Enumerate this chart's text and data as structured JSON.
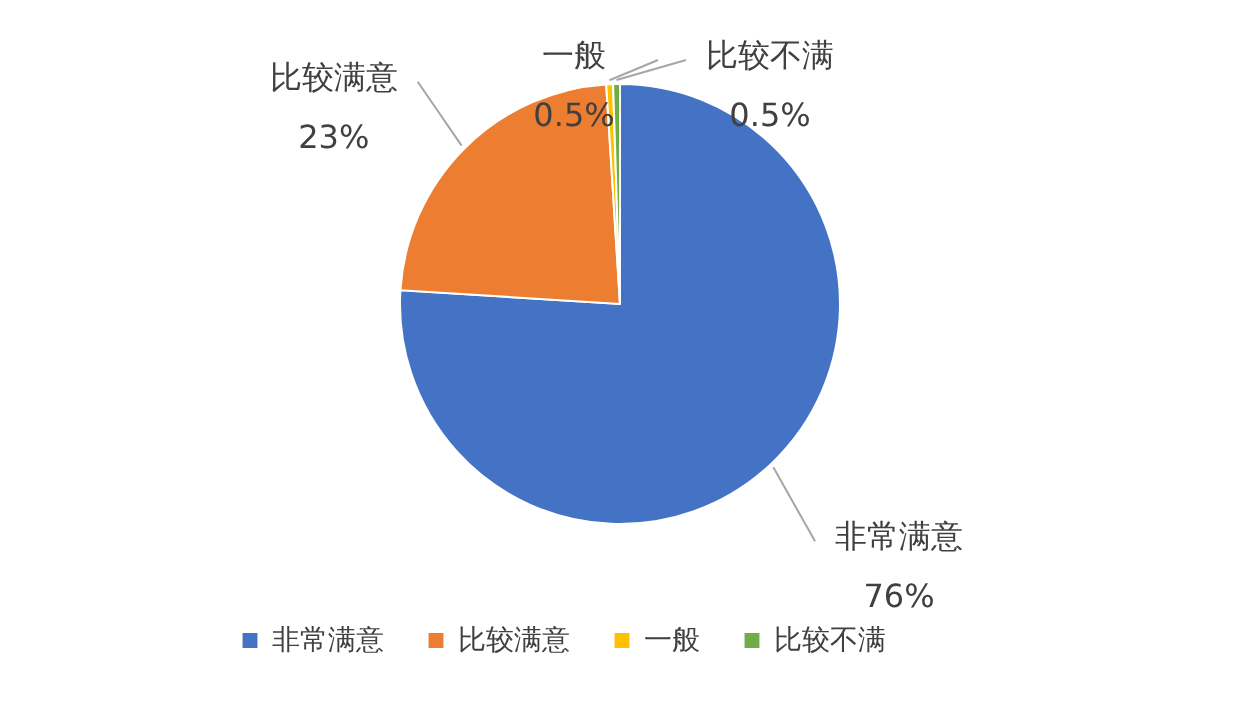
{
  "chart_data": {
    "type": "pie",
    "categories": [
      "非常满意",
      "比较满意",
      "一般",
      "比较不满"
    ],
    "values": [
      76,
      23,
      0.5,
      0.5
    ],
    "colors": [
      "#4472c4",
      "#ed7d31",
      "#ffc000",
      "#70ad47"
    ],
    "value_labels": [
      "76%",
      "23%",
      "0.5%",
      "0.5%"
    ],
    "legend": "bottom"
  }
}
